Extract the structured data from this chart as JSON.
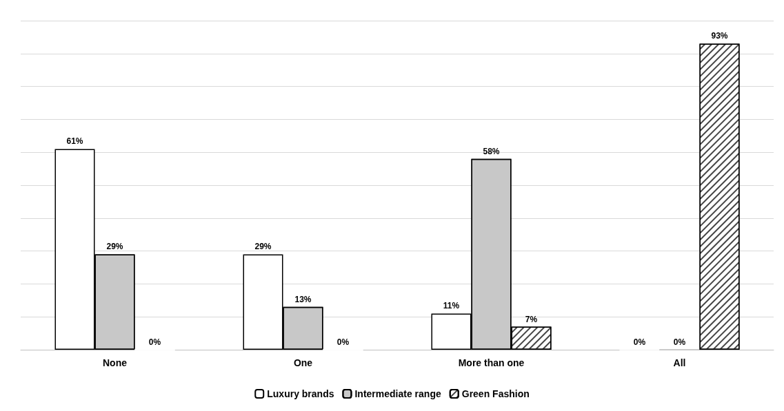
{
  "chart_data": {
    "type": "bar",
    "categories": [
      "None",
      "One",
      "More than one",
      "All"
    ],
    "series": [
      {
        "name": "Luxury brands",
        "color": "#ffffff",
        "values": [
          61,
          29,
          11,
          0
        ],
        "value_labels": [
          "61%",
          "29%",
          "11%",
          "0%"
        ]
      },
      {
        "name": "Intermediate range",
        "color": "#c8c8c8",
        "values": [
          29,
          13,
          58,
          0
        ],
        "value_labels": [
          "29%",
          "13%",
          "58%",
          "0%"
        ]
      },
      {
        "name": "Green Fashion",
        "color": "#ffffff",
        "values": [
          0,
          0,
          7,
          93
        ],
        "value_labels": [
          "0%",
          "0%",
          "7%",
          "93%"
        ]
      }
    ],
    "ylim": [
      0,
      100
    ],
    "yticks": [
      {
        "value": 0,
        "label": null
      },
      {
        "value": 10,
        "label": null
      },
      {
        "value": 20,
        "label": null
      },
      {
        "value": 30,
        "label": null
      },
      {
        "value": 40,
        "label": null
      },
      {
        "value": 50,
        "label": null
      },
      {
        "value": 60,
        "label": null
      },
      {
        "value": 70,
        "label": null
      },
      {
        "value": 80,
        "label": null
      },
      {
        "value": 90,
        "label": null
      },
      {
        "value": 100,
        "label": null
      }
    ],
    "grid": "y",
    "legend": "bottom",
    "tick_labels": "x"
  }
}
